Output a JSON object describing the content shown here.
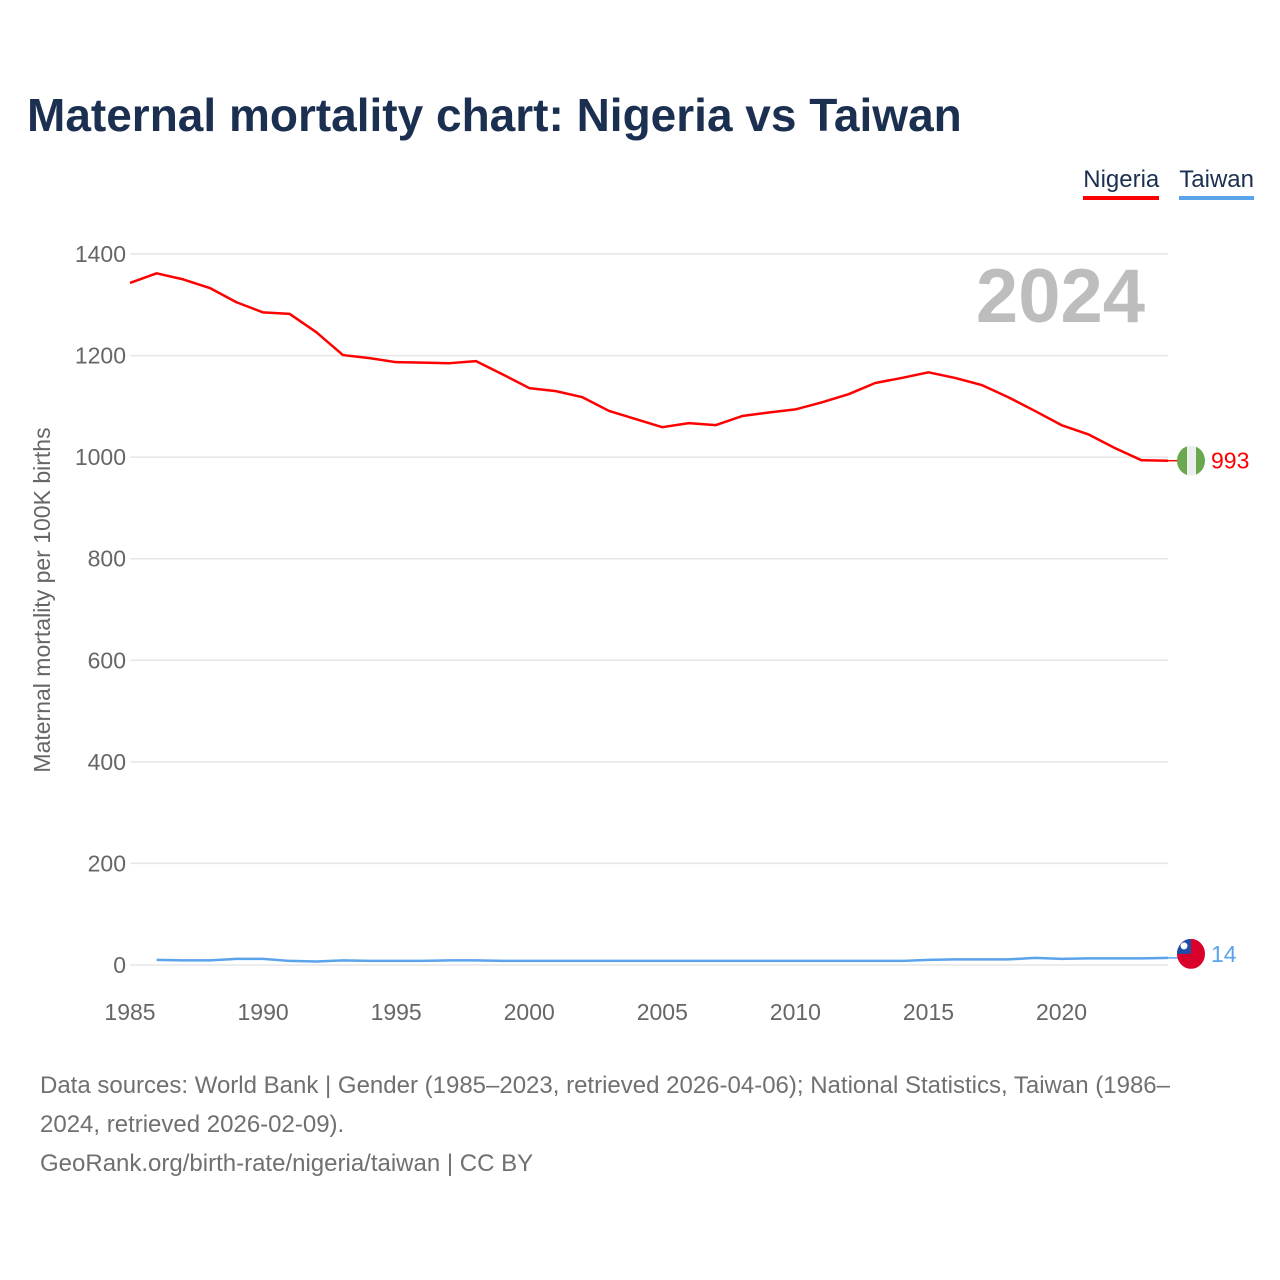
{
  "title": "Maternal mortality chart: Nigeria vs Taiwan",
  "year_watermark": "2024",
  "sources": "Data sources: World Bank | Gender (1985–2023, retrieved 2026-04-06); National Statistics, Taiwan (1986–2024, retrieved 2026-02-09).",
  "attribution": "GeoRank.org/birth-rate/nigeria/taiwan | CC BY",
  "chart_data": {
    "type": "line",
    "title": "Maternal mortality chart: Nigeria vs Taiwan",
    "ylabel": "Maternal mortality per 100K births",
    "xlabel": "",
    "xlim": [
      1985,
      2024
    ],
    "ylim": [
      0,
      1400
    ],
    "xticks": [
      1985,
      1990,
      1995,
      2000,
      2005,
      2010,
      2015,
      2020
    ],
    "yticks": [
      0,
      200,
      400,
      600,
      800,
      1000,
      1200,
      1400
    ],
    "grid": true,
    "legend": "top-right",
    "series": [
      {
        "name": "Nigeria",
        "color": "#ff0000",
        "end_label": "993",
        "x": [
          1985,
          1986,
          1987,
          1988,
          1989,
          1990,
          1991,
          1992,
          1993,
          1994,
          1995,
          1996,
          1997,
          1998,
          1999,
          2000,
          2001,
          2002,
          2003,
          2004,
          2005,
          2006,
          2007,
          2008,
          2009,
          2010,
          2011,
          2012,
          2013,
          2014,
          2015,
          2016,
          2017,
          2018,
          2019,
          2020,
          2021,
          2022,
          2023,
          2024
        ],
        "y": [
          1343,
          1362,
          1350,
          1333,
          1305,
          1285,
          1282,
          1246,
          1201,
          1195,
          1187,
          1186,
          1185,
          1189,
          1163,
          1136,
          1130,
          1118,
          1091,
          1075,
          1059,
          1067,
          1063,
          1081,
          1088,
          1094,
          1108,
          1124,
          1146,
          1156,
          1167,
          1156,
          1142,
          1118,
          1091,
          1063,
          1045,
          1018,
          994,
          993
        ]
      },
      {
        "name": "Taiwan",
        "color": "#5ba3ea",
        "end_label": "14",
        "x": [
          1986,
          1987,
          1988,
          1989,
          1990,
          1991,
          1992,
          1993,
          1994,
          1995,
          1996,
          1997,
          1998,
          1999,
          2000,
          2001,
          2002,
          2003,
          2004,
          2005,
          2006,
          2007,
          2008,
          2009,
          2010,
          2011,
          2012,
          2013,
          2014,
          2015,
          2016,
          2017,
          2018,
          2019,
          2020,
          2021,
          2022,
          2023,
          2024
        ],
        "y": [
          10,
          9,
          9,
          12,
          12,
          8,
          7,
          9,
          8,
          8,
          8,
          9,
          9,
          8,
          8,
          8,
          8,
          8,
          8,
          8,
          8,
          8,
          8,
          8,
          8,
          8,
          8,
          8,
          8,
          10,
          11,
          11,
          11,
          14,
          12,
          13,
          13,
          13,
          14
        ]
      }
    ]
  }
}
